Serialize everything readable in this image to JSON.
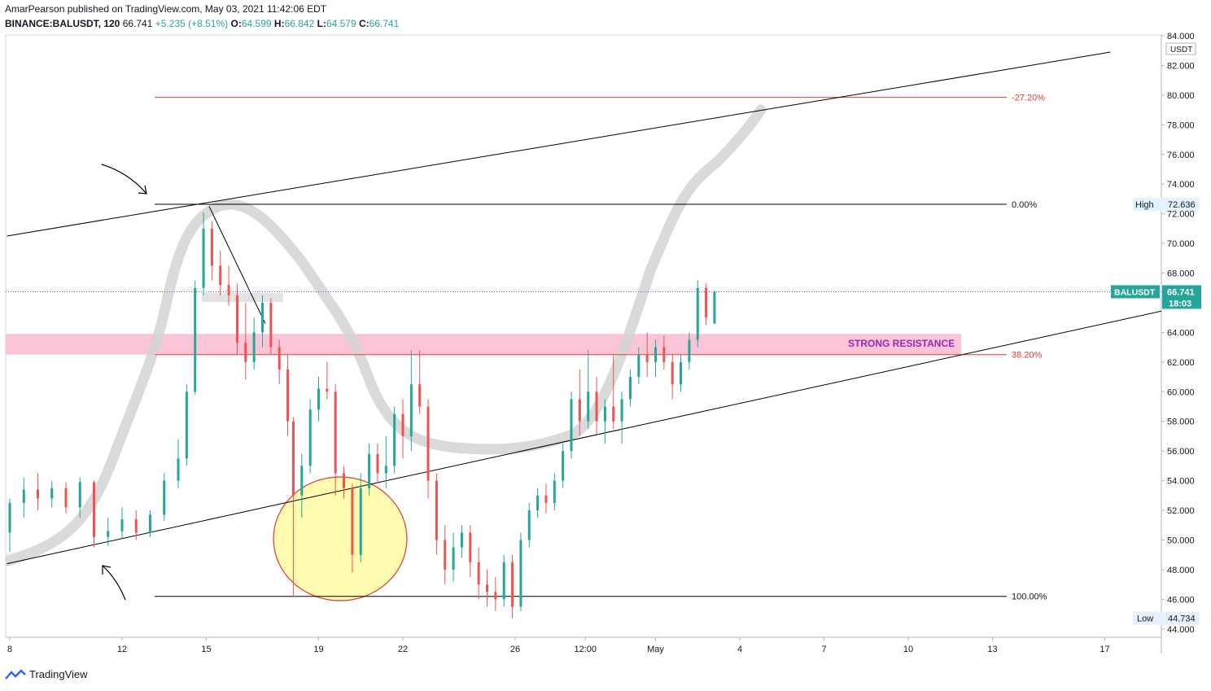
{
  "header": {
    "line1": "AmarPearson published on TradingView.com, May 03, 2021 11:42:06 EDT",
    "symbol": "BINANCE:BALUSDT, 120",
    "last": "66.741",
    "change": "+5.235 (+8.51%)",
    "o_label": "O:",
    "o_val": "64.599",
    "h_label": "H:",
    "h_val": "66.842",
    "l_label": "L:",
    "l_val": "64.579",
    "c_label": "C:",
    "c_val": "66.741"
  },
  "footer": {
    "brand": "TradingView",
    "logo_icon": "tradingview-logo-icon"
  },
  "chart_data": {
    "type": "candlestick",
    "symbol": "BALUSDT",
    "currency_label": "USDT",
    "ylim": [
      43.5,
      84.5
    ],
    "y_ticks": [
      44,
      46,
      48,
      50,
      52,
      54,
      56,
      58,
      60,
      62,
      64,
      66,
      68,
      70,
      72,
      74,
      76,
      78,
      80,
      82,
      84
    ],
    "x_ticks": [
      {
        "label": "8",
        "day": 8
      },
      {
        "label": "12",
        "day": 12
      },
      {
        "label": "15",
        "day": 15
      },
      {
        "label": "19",
        "day": 19
      },
      {
        "label": "22",
        "day": 22
      },
      {
        "label": "26",
        "day": 26
      },
      {
        "label": "12:00",
        "day": 28.5
      },
      {
        "label": "May",
        "day": 31
      },
      {
        "label": "4",
        "day": 34
      },
      {
        "label": "7",
        "day": 37
      },
      {
        "label": "10",
        "day": 40
      },
      {
        "label": "13",
        "day": 43
      },
      {
        "label": "17",
        "day": 47
      }
    ],
    "last_price": {
      "value": 66.741,
      "label": "BALUSDT",
      "price_text": "66.741",
      "countdown": "18:03"
    },
    "high_marker": {
      "label": "High",
      "value": 72.636,
      "text": "72.636"
    },
    "low_marker": {
      "label": "Low",
      "value": 44.734,
      "text": "44.734"
    },
    "fib_levels": [
      {
        "label": "-27.20%",
        "value": 79.85,
        "color": "#e53935"
      },
      {
        "label": "0.00%",
        "value": 72.636,
        "color": "#000000"
      },
      {
        "label": "38.20%",
        "value": 62.5,
        "color": "#e53935"
      },
      {
        "label": "100.00%",
        "value": 46.2,
        "color": "#000000"
      }
    ],
    "resistance_zone": {
      "label": "STRONG RESISTANCE",
      "from": 62.5,
      "to": 63.9
    },
    "trendlines": [
      {
        "name": "upper-channel-line",
        "from": {
          "day": 7.9,
          "price": 70.5
        },
        "to": {
          "day": 47.2,
          "price": 82.9
        }
      },
      {
        "name": "lower-channel-line",
        "from": {
          "day": 7.9,
          "price": 48.4
        },
        "to": {
          "day": 49.9,
          "price": 65.8
        }
      },
      {
        "name": "short-downtrend-line",
        "from": {
          "day": 15.1,
          "price": 72.5
        },
        "to": {
          "day": 17.1,
          "price": 64.6
        }
      }
    ],
    "candles": [
      {
        "day": 8.0,
        "o": 50.5,
        "h": 52.8,
        "l": 49.2,
        "c": 52.5
      },
      {
        "day": 8.5,
        "o": 52.5,
        "h": 54.2,
        "l": 51.5,
        "c": 53.4
      },
      {
        "day": 9.0,
        "o": 53.4,
        "h": 54.5,
        "l": 52.0,
        "c": 52.8
      },
      {
        "day": 9.5,
        "o": 52.8,
        "h": 54.0,
        "l": 52.2,
        "c": 53.5
      },
      {
        "day": 10.0,
        "o": 53.5,
        "h": 53.9,
        "l": 51.8,
        "c": 52.2
      },
      {
        "day": 10.5,
        "o": 52.2,
        "h": 54.2,
        "l": 51.5,
        "c": 53.9
      },
      {
        "day": 11.0,
        "o": 53.9,
        "h": 54.0,
        "l": 49.5,
        "c": 50.2
      },
      {
        "day": 11.5,
        "o": 50.2,
        "h": 51.5,
        "l": 49.6,
        "c": 50.6
      },
      {
        "day": 12.0,
        "o": 50.6,
        "h": 52.2,
        "l": 50.1,
        "c": 51.4
      },
      {
        "day": 12.5,
        "o": 51.4,
        "h": 52.0,
        "l": 50.0,
        "c": 50.5
      },
      {
        "day": 13.0,
        "o": 50.5,
        "h": 52.0,
        "l": 50.2,
        "c": 51.7
      },
      {
        "day": 13.5,
        "o": 51.7,
        "h": 54.5,
        "l": 51.3,
        "c": 54.0
      },
      {
        "day": 14.0,
        "o": 54.0,
        "h": 56.8,
        "l": 53.5,
        "c": 55.5
      },
      {
        "day": 14.3,
        "o": 55.5,
        "h": 60.5,
        "l": 55.0,
        "c": 60.0
      },
      {
        "day": 14.6,
        "o": 60.0,
        "h": 67.5,
        "l": 59.8,
        "c": 67.0
      },
      {
        "day": 14.9,
        "o": 67.0,
        "h": 72.1,
        "l": 66.5,
        "c": 71.0
      },
      {
        "day": 15.2,
        "o": 71.0,
        "h": 71.5,
        "l": 67.5,
        "c": 68.5
      },
      {
        "day": 15.5,
        "o": 68.5,
        "h": 69.5,
        "l": 66.5,
        "c": 67.2
      },
      {
        "day": 15.8,
        "o": 67.2,
        "h": 68.5,
        "l": 65.8,
        "c": 66.5
      },
      {
        "day": 16.1,
        "o": 66.5,
        "h": 67.3,
        "l": 62.5,
        "c": 63.3
      },
      {
        "day": 16.4,
        "o": 63.3,
        "h": 66.0,
        "l": 60.8,
        "c": 62.0
      },
      {
        "day": 16.7,
        "o": 62.0,
        "h": 65.0,
        "l": 61.5,
        "c": 64.0
      },
      {
        "day": 17.0,
        "o": 64.0,
        "h": 66.5,
        "l": 63.0,
        "c": 66.0
      },
      {
        "day": 17.3,
        "o": 66.0,
        "h": 66.3,
        "l": 62.5,
        "c": 63.0
      },
      {
        "day": 17.6,
        "o": 63.0,
        "h": 63.5,
        "l": 60.5,
        "c": 61.5
      },
      {
        "day": 17.9,
        "o": 61.5,
        "h": 62.5,
        "l": 57.0,
        "c": 58.0
      },
      {
        "day": 18.1,
        "o": 58.0,
        "h": 58.3,
        "l": 46.2,
        "c": 53.0
      },
      {
        "day": 18.4,
        "o": 53.0,
        "h": 55.8,
        "l": 51.5,
        "c": 55.0
      },
      {
        "day": 18.7,
        "o": 55.0,
        "h": 59.5,
        "l": 54.5,
        "c": 58.8
      },
      {
        "day": 19.0,
        "o": 58.8,
        "h": 61.0,
        "l": 58.0,
        "c": 60.2
      },
      {
        "day": 19.3,
        "o": 60.2,
        "h": 62.0,
        "l": 59.5,
        "c": 60.0
      },
      {
        "day": 19.6,
        "o": 60.0,
        "h": 60.5,
        "l": 53.0,
        "c": 54.5
      },
      {
        "day": 19.9,
        "o": 54.5,
        "h": 55.0,
        "l": 52.8,
        "c": 53.5
      },
      {
        "day": 20.2,
        "o": 53.5,
        "h": 53.8,
        "l": 47.8,
        "c": 49.0
      },
      {
        "day": 20.5,
        "o": 49.0,
        "h": 54.5,
        "l": 48.5,
        "c": 53.5
      },
      {
        "day": 20.8,
        "o": 53.5,
        "h": 56.5,
        "l": 53.0,
        "c": 55.8
      },
      {
        "day": 21.1,
        "o": 55.8,
        "h": 56.5,
        "l": 53.8,
        "c": 54.5
      },
      {
        "day": 21.4,
        "o": 54.5,
        "h": 57.0,
        "l": 53.5,
        "c": 55.0
      },
      {
        "day": 21.7,
        "o": 55.0,
        "h": 59.0,
        "l": 54.5,
        "c": 58.5
      },
      {
        "day": 22.0,
        "o": 58.5,
        "h": 59.5,
        "l": 55.5,
        "c": 57.0
      },
      {
        "day": 22.3,
        "o": 57.0,
        "h": 62.8,
        "l": 56.0,
        "c": 60.5
      },
      {
        "day": 22.6,
        "o": 60.5,
        "h": 62.8,
        "l": 58.5,
        "c": 59.0
      },
      {
        "day": 22.9,
        "o": 59.0,
        "h": 59.5,
        "l": 52.8,
        "c": 54.0
      },
      {
        "day": 23.2,
        "o": 54.0,
        "h": 54.5,
        "l": 49.0,
        "c": 50.0
      },
      {
        "day": 23.5,
        "o": 50.0,
        "h": 51.0,
        "l": 47.0,
        "c": 48.0
      },
      {
        "day": 23.8,
        "o": 48.0,
        "h": 50.5,
        "l": 47.2,
        "c": 49.5
      },
      {
        "day": 24.1,
        "o": 49.5,
        "h": 51.0,
        "l": 48.8,
        "c": 50.5
      },
      {
        "day": 24.4,
        "o": 50.5,
        "h": 51.0,
        "l": 47.5,
        "c": 48.5
      },
      {
        "day": 24.7,
        "o": 48.5,
        "h": 49.5,
        "l": 46.0,
        "c": 47.0
      },
      {
        "day": 25.0,
        "o": 47.0,
        "h": 48.0,
        "l": 45.5,
        "c": 46.5
      },
      {
        "day": 25.3,
        "o": 46.5,
        "h": 47.5,
        "l": 45.2,
        "c": 46.0
      },
      {
        "day": 25.6,
        "o": 46.0,
        "h": 49.0,
        "l": 45.5,
        "c": 48.5
      },
      {
        "day": 25.9,
        "o": 48.5,
        "h": 49.0,
        "l": 44.73,
        "c": 45.5
      },
      {
        "day": 26.2,
        "o": 45.5,
        "h": 50.5,
        "l": 45.2,
        "c": 50.0
      },
      {
        "day": 26.5,
        "o": 50.0,
        "h": 52.5,
        "l": 49.5,
        "c": 52.0
      },
      {
        "day": 26.8,
        "o": 52.0,
        "h": 53.5,
        "l": 51.5,
        "c": 53.0
      },
      {
        "day": 27.1,
        "o": 53.0,
        "h": 53.8,
        "l": 51.8,
        "c": 52.5
      },
      {
        "day": 27.4,
        "o": 52.5,
        "h": 54.5,
        "l": 52.0,
        "c": 54.0
      },
      {
        "day": 27.7,
        "o": 54.0,
        "h": 56.5,
        "l": 53.5,
        "c": 56.0
      },
      {
        "day": 28.0,
        "o": 56.0,
        "h": 60.0,
        "l": 55.5,
        "c": 59.5
      },
      {
        "day": 28.3,
        "o": 59.5,
        "h": 61.5,
        "l": 57.0,
        "c": 58.0
      },
      {
        "day": 28.6,
        "o": 58.0,
        "h": 62.8,
        "l": 57.5,
        "c": 60.0
      },
      {
        "day": 28.9,
        "o": 60.0,
        "h": 61.0,
        "l": 57.0,
        "c": 58.0
      },
      {
        "day": 29.2,
        "o": 58.0,
        "h": 59.5,
        "l": 56.5,
        "c": 59.0
      },
      {
        "day": 29.5,
        "o": 59.0,
        "h": 62.5,
        "l": 57.5,
        "c": 58.0
      },
      {
        "day": 29.8,
        "o": 58.0,
        "h": 60.0,
        "l": 56.5,
        "c": 59.5
      },
      {
        "day": 30.1,
        "o": 59.5,
        "h": 61.5,
        "l": 59.0,
        "c": 61.0
      },
      {
        "day": 30.4,
        "o": 61.0,
        "h": 63.0,
        "l": 60.5,
        "c": 62.5
      },
      {
        "day": 30.7,
        "o": 62.5,
        "h": 64.0,
        "l": 61.0,
        "c": 62.0
      },
      {
        "day": 31.0,
        "o": 62.0,
        "h": 63.5,
        "l": 61.0,
        "c": 63.0
      },
      {
        "day": 31.3,
        "o": 63.0,
        "h": 63.8,
        "l": 61.5,
        "c": 62.0
      },
      {
        "day": 31.6,
        "o": 62.0,
        "h": 62.5,
        "l": 59.5,
        "c": 60.5
      },
      {
        "day": 31.9,
        "o": 60.5,
        "h": 62.5,
        "l": 60.0,
        "c": 62.0
      },
      {
        "day": 32.2,
        "o": 62.0,
        "h": 64.0,
        "l": 61.5,
        "c": 63.5
      },
      {
        "day": 32.5,
        "o": 63.5,
        "h": 67.5,
        "l": 63.0,
        "c": 67.0
      },
      {
        "day": 32.8,
        "o": 67.0,
        "h": 67.3,
        "l": 64.5,
        "c": 65.0
      },
      {
        "day": 33.1,
        "o": 64.6,
        "h": 66.84,
        "l": 64.58,
        "c": 66.74
      }
    ]
  }
}
